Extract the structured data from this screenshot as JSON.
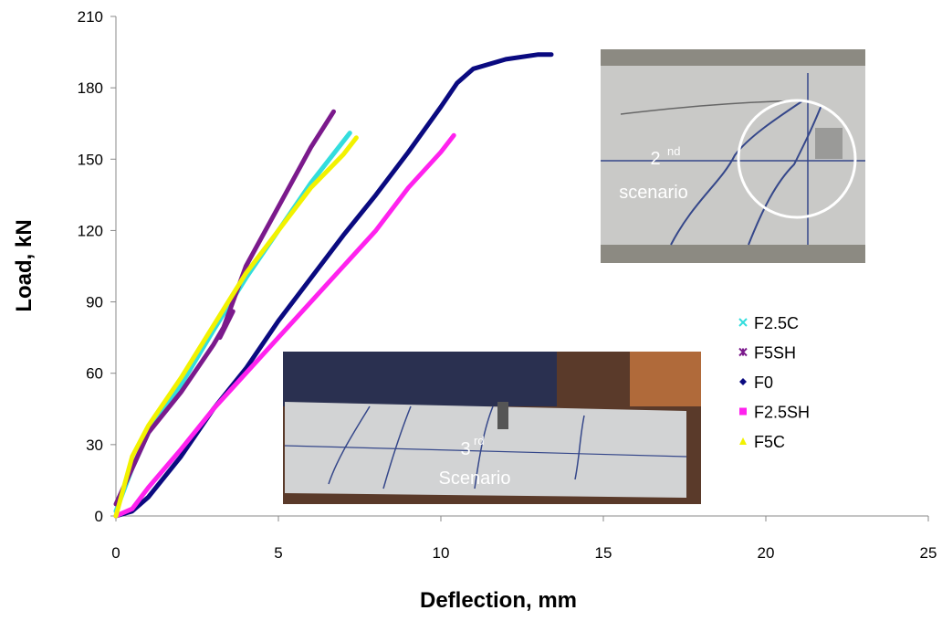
{
  "chart_data": {
    "type": "line",
    "xlabel": "Deflection, mm",
    "ylabel": "Load,  kN",
    "xlim": [
      0,
      25
    ],
    "xticks": [
      0,
      5,
      10,
      15,
      20,
      25
    ],
    "ylim": [
      0,
      210
    ],
    "yticks": [
      0,
      30,
      60,
      90,
      120,
      150,
      180,
      210
    ],
    "grid": false,
    "legend": "right",
    "series": [
      {
        "name": "F2.5C",
        "color": "#33dddd",
        "marker": "x",
        "x": [
          0,
          0.5,
          1,
          2,
          3,
          4,
          5,
          6,
          7.2
        ],
        "values": [
          2,
          20,
          35,
          55,
          78,
          100,
          120,
          140,
          161
        ]
      },
      {
        "name": "F5SH",
        "color": "#7b1a8c",
        "marker": "star",
        "x": [
          0,
          1,
          2,
          3,
          3.6,
          3.2,
          4,
          5,
          6,
          6.7
        ],
        "values": [
          5,
          35,
          52,
          72,
          86,
          75,
          105,
          130,
          155,
          170
        ]
      },
      {
        "name": "F0",
        "color": "#0a0a80",
        "marker": "diamond",
        "x": [
          0,
          0.5,
          1,
          2,
          3,
          4,
          5,
          6,
          7,
          8,
          9,
          10,
          10.5,
          11,
          12,
          13,
          13.4
        ],
        "values": [
          0,
          2,
          8,
          25,
          45,
          62,
          82,
          100,
          118,
          135,
          153,
          172,
          182,
          188,
          192,
          194,
          194
        ]
      },
      {
        "name": "F2.5SH",
        "color": "#ff22ee",
        "marker": "square",
        "x": [
          0,
          0.5,
          1,
          2,
          3,
          4,
          5,
          6,
          7,
          8,
          9,
          10,
          10.4
        ],
        "values": [
          0,
          3,
          12,
          28,
          45,
          60,
          75,
          90,
          105,
          120,
          138,
          153,
          160
        ]
      },
      {
        "name": "F5C",
        "color": "#f2f200",
        "marker": "triangle",
        "x": [
          0,
          0.5,
          1,
          2,
          3,
          4,
          5,
          6,
          7,
          7.4
        ],
        "values": [
          0,
          25,
          38,
          58,
          80,
          102,
          120,
          138,
          152,
          159
        ]
      }
    ],
    "annotations": [
      {
        "number": "2",
        "suffix": "nd",
        "label": "scenario"
      },
      {
        "number": "3",
        "suffix": "rd",
        "label": "Scenario"
      }
    ]
  }
}
